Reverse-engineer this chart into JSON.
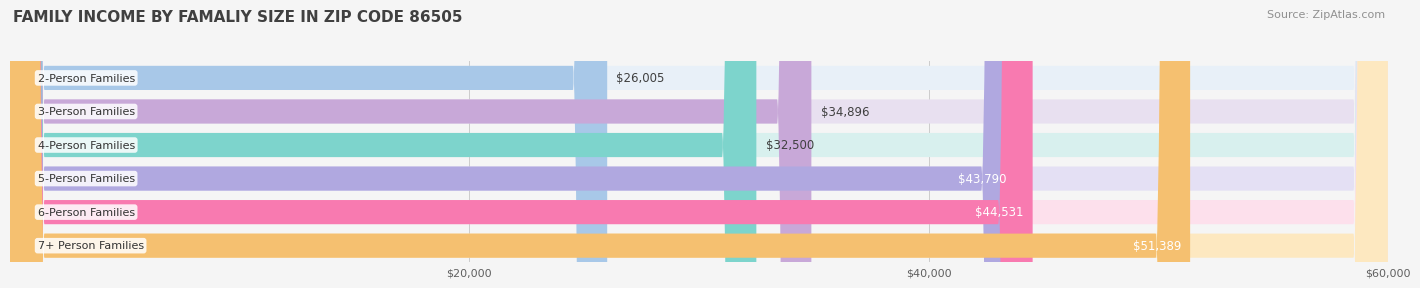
{
  "title": "FAMILY INCOME BY FAMALIY SIZE IN ZIP CODE 86505",
  "source": "Source: ZipAtlas.com",
  "categories": [
    "2-Person Families",
    "3-Person Families",
    "4-Person Families",
    "5-Person Families",
    "6-Person Families",
    "7+ Person Families"
  ],
  "values": [
    26005,
    34896,
    32500,
    43790,
    44531,
    51389
  ],
  "labels": [
    "$26,005",
    "$34,896",
    "$32,500",
    "$43,790",
    "$44,531",
    "$51,389"
  ],
  "bar_colors": [
    "#a8c8e8",
    "#c8a8d8",
    "#7dd4cc",
    "#b0a8e0",
    "#f87ab0",
    "#f5c070"
  ],
  "bar_bg_colors": [
    "#e8f0f8",
    "#e8e0f0",
    "#d8f0ee",
    "#e4e0f4",
    "#fde0ec",
    "#fde8c0"
  ],
  "xlim": [
    0,
    60000
  ],
  "xtick_labels": [
    "$20,000",
    "$40,000",
    "$60,000"
  ],
  "xtick_vals": [
    20000,
    40000,
    60000
  ],
  "bg_color": "#f5f5f5",
  "title_color": "#404040",
  "source_color": "#909090",
  "title_fontsize": 11,
  "source_fontsize": 8,
  "bar_label_fontsize": 8.5,
  "cat_label_fontsize": 8,
  "tick_label_fontsize": 8
}
